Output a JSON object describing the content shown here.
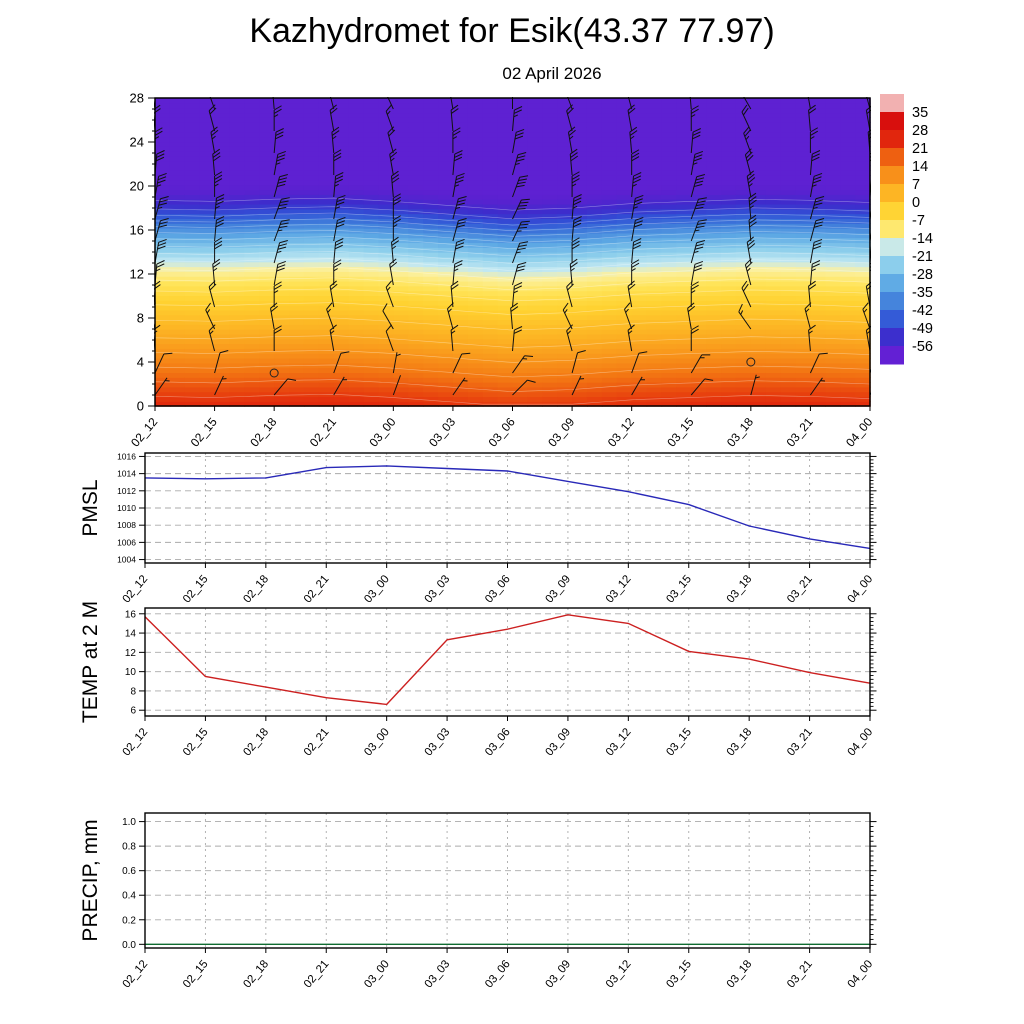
{
  "title": "Kazhydromet for Esik(43.37 77.97)",
  "subtitle": "02 April 2026",
  "time_labels": [
    "02_12",
    "02_15",
    "02_18",
    "02_21",
    "03_00",
    "03_03",
    "03_06",
    "03_09",
    "03_12",
    "03_15",
    "03_18",
    "03_21",
    "04_00"
  ],
  "chart_data": [
    {
      "type": "heatmap",
      "name": "temperature-height-cross-section",
      "x_categories": [
        "02_12",
        "02_15",
        "02_18",
        "02_21",
        "03_00",
        "03_03",
        "03_06",
        "03_09",
        "03_12",
        "03_15",
        "03_18",
        "03_21",
        "04_00"
      ],
      "ylim": [
        0,
        28
      ],
      "yticks": [
        0,
        4,
        8,
        12,
        16,
        20,
        24,
        28
      ],
      "ytick_labels": [
        "0",
        "4",
        "8",
        "12",
        "16",
        "20",
        "24",
        "28"
      ],
      "profile": {
        "heights_km": [
          0,
          2,
          4,
          6,
          8,
          10,
          11,
          12,
          13,
          14,
          15,
          16,
          17,
          18,
          19,
          20,
          28
        ],
        "temps_c": [
          24,
          18,
          12,
          6,
          1,
          -5,
          -9,
          -13,
          -18,
          -24,
          -30,
          -37,
          -45,
          -52,
          -56,
          -58,
          -58
        ]
      },
      "time_offsets_km": [
        0.2,
        0.1,
        0.3,
        0.4,
        0.1,
        -0.3,
        -0.7,
        -0.5,
        -0.1,
        0.1,
        0.3,
        0.2,
        0.0
      ],
      "contour_levels": [
        22,
        18,
        14,
        10,
        6,
        2,
        -2,
        -6,
        -10,
        -14,
        -18,
        -22,
        -26,
        -30,
        -34,
        -38,
        -42,
        -46,
        -50,
        -54
      ],
      "colormap": [
        [
          -62,
          "#6a1fd8"
        ],
        [
          -57,
          "#5b21d0"
        ],
        [
          -53,
          "#3d2ccc"
        ],
        [
          -47,
          "#3152d6"
        ],
        [
          -40,
          "#3f7cda"
        ],
        [
          -32,
          "#5da8e4"
        ],
        [
          -24,
          "#8fd0ec"
        ],
        [
          -18,
          "#c2e8f2"
        ],
        [
          -14,
          "#fbf0a0"
        ],
        [
          -9,
          "#ffe45a"
        ],
        [
          -3,
          "#ffd231"
        ],
        [
          3,
          "#fdb825"
        ],
        [
          9,
          "#f9991c"
        ],
        [
          15,
          "#f37613"
        ],
        [
          21,
          "#e8420e"
        ],
        [
          27,
          "#dc120c"
        ],
        [
          34,
          "#d60d0d"
        ],
        [
          37,
          "#efa6a6"
        ],
        [
          40,
          "#f4bcbc"
        ]
      ],
      "colorbar_ticks": [
        35,
        28,
        21,
        14,
        7,
        0,
        -7,
        -14,
        -21,
        -28,
        -35,
        -42,
        -49,
        -56
      ],
      "wind": {
        "heights_km": [
          1,
          3,
          5,
          7,
          9,
          11,
          13,
          15,
          17,
          19,
          21,
          23,
          25,
          27
        ],
        "speeds_kt": [
          5,
          10,
          15,
          15,
          20,
          25,
          30,
          30,
          35,
          35,
          30,
          25,
          20,
          20
        ],
        "dirs_deg": [
          30,
          20,
          350,
          340,
          350,
          0,
          5,
          10,
          10,
          5,
          0,
          355,
          350,
          345
        ],
        "dir_delta_by_time": [
          5,
          -5,
          10,
          0,
          -10,
          5,
          15,
          -5,
          0,
          10,
          -15,
          5,
          0
        ],
        "speed_delta_by_time": [
          0,
          0,
          5,
          0,
          -5,
          0,
          5,
          0,
          0,
          5,
          0,
          0,
          0
        ]
      },
      "calm_points": [
        {
          "time": "02_18",
          "height_km": 3
        },
        {
          "time": "03_18",
          "height_km": 4
        }
      ]
    },
    {
      "type": "line",
      "name": "pmsl",
      "ylabel": "PMSL",
      "ylim": [
        1003.6,
        1016.4
      ],
      "yticks": [
        1004,
        1006,
        1008,
        1010,
        1012,
        1014,
        1016
      ],
      "ytick_labels": [
        "1004",
        "1006",
        "1008",
        "1010",
        "1012",
        "1014",
        "1016"
      ],
      "categories": [
        "02_12",
        "02_15",
        "02_18",
        "02_21",
        "03_00",
        "03_03",
        "03_06",
        "03_09",
        "03_12",
        "03_15",
        "03_18",
        "03_21",
        "04_00"
      ],
      "values": [
        1013.5,
        1013.4,
        1013.5,
        1014.7,
        1014.9,
        1014.6,
        1014.3,
        1013.1,
        1011.9,
        1010.4,
        1007.9,
        1006.4,
        1005.3
      ],
      "line_color": "#2929b8"
    },
    {
      "type": "line",
      "name": "temp-2m",
      "ylabel": "TEMP at 2 M",
      "ylim": [
        5.4,
        16.6
      ],
      "yticks": [
        6,
        8,
        10,
        12,
        14,
        16
      ],
      "ytick_labels": [
        "6",
        "8",
        "10",
        "12",
        "14",
        "16"
      ],
      "categories": [
        "02_12",
        "02_15",
        "02_18",
        "02_21",
        "03_00",
        "03_03",
        "03_06",
        "03_09",
        "03_12",
        "03_15",
        "03_18",
        "03_21",
        "04_00"
      ],
      "values": [
        15.7,
        9.5,
        8.4,
        7.3,
        6.6,
        13.3,
        14.4,
        15.9,
        15.0,
        12.1,
        11.3,
        9.9,
        8.8
      ],
      "line_color": "#cc2020"
    },
    {
      "type": "line",
      "name": "precip",
      "ylabel": "PRECIP, mm",
      "ylim": [
        -0.03,
        1.07
      ],
      "yticks": [
        0.0,
        0.2,
        0.4,
        0.6,
        0.8,
        1.0
      ],
      "ytick_labels": [
        "0.0",
        "0.2",
        "0.4",
        "0.6",
        "0.8",
        "1.0"
      ],
      "categories": [
        "02_12",
        "02_15",
        "02_18",
        "02_21",
        "03_00",
        "03_03",
        "03_06",
        "03_09",
        "03_12",
        "03_15",
        "03_18",
        "03_21",
        "04_00"
      ],
      "values": [
        0,
        0,
        0,
        0,
        0,
        0,
        0,
        0,
        0,
        0,
        0,
        0,
        0
      ],
      "line_color": "#0e6b30"
    }
  ]
}
